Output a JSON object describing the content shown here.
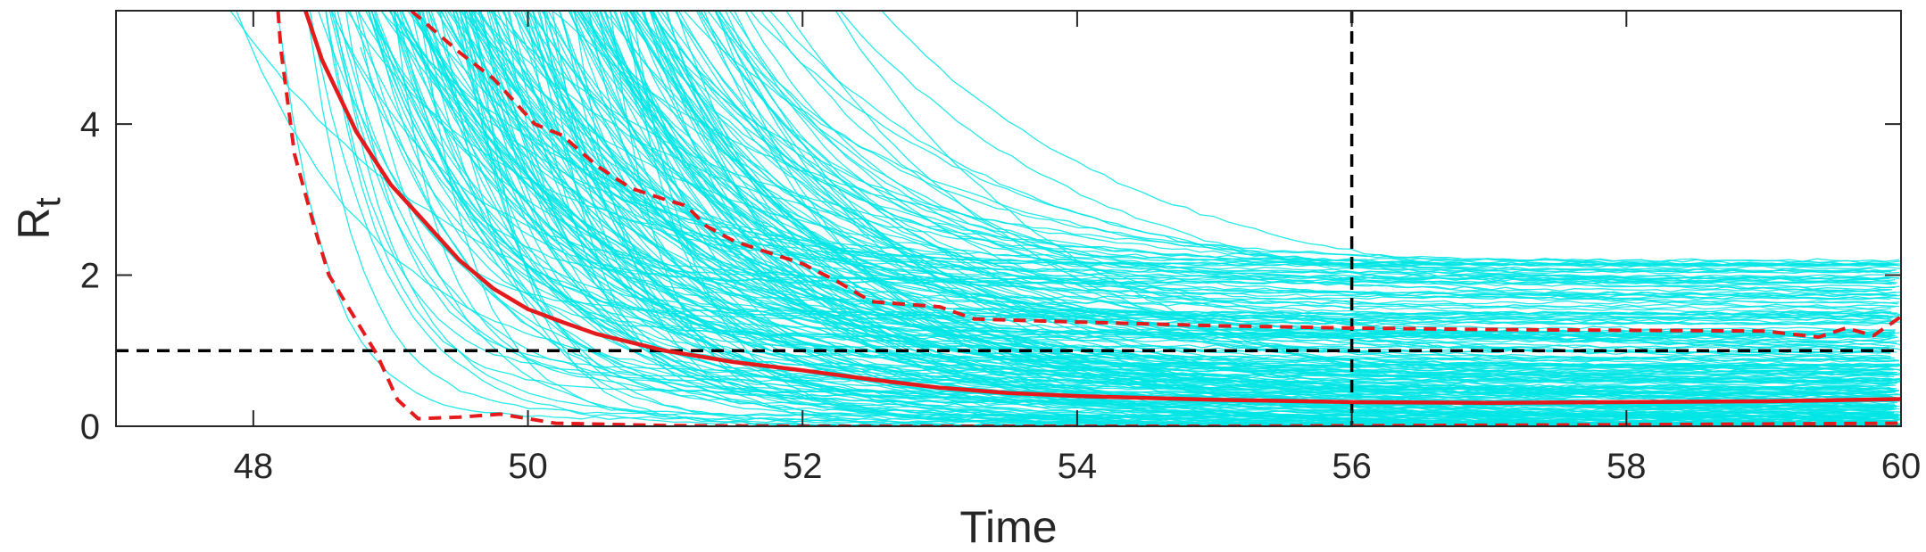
{
  "chart_data": {
    "type": "line",
    "xlabel": "Time",
    "ylabel": "R",
    "ylabel_subscript": "t",
    "xlim": [
      47,
      60
    ],
    "ylim": [
      0,
      5.5
    ],
    "x_ticks": [
      "48",
      "50",
      "52",
      "54",
      "56",
      "58",
      "60"
    ],
    "y_ticks": [
      "0",
      "2",
      "4"
    ],
    "grid": false,
    "reference_lines": [
      {
        "orientation": "horizontal",
        "value": 1,
        "color": "#000000",
        "style": "dashed"
      },
      {
        "orientation": "vertical",
        "value": 56,
        "color": "#000000",
        "style": "dashed"
      }
    ],
    "sample_color": "#00e5e5",
    "series": [
      {
        "role": "median",
        "color": "#e41a1c",
        "style": "solid",
        "points": [
          [
            48.38,
            5.5
          ],
          [
            48.5,
            4.85
          ],
          [
            48.75,
            3.9
          ],
          [
            49,
            3.2
          ],
          [
            49.25,
            2.7
          ],
          [
            49.5,
            2.2
          ],
          [
            49.75,
            1.82
          ],
          [
            50,
            1.55
          ],
          [
            50.25,
            1.38
          ],
          [
            50.5,
            1.22
          ],
          [
            51,
            1
          ],
          [
            51.5,
            0.85
          ],
          [
            52,
            0.74
          ],
          [
            52.5,
            0.62
          ],
          [
            53,
            0.51
          ],
          [
            53.5,
            0.44
          ],
          [
            54,
            0.4
          ],
          [
            55,
            0.35
          ],
          [
            56,
            0.32
          ],
          [
            57,
            0.31
          ],
          [
            58,
            0.32
          ],
          [
            59,
            0.33
          ],
          [
            60,
            0.36
          ]
        ]
      },
      {
        "role": "upper-bound",
        "color": "#e41a1c",
        "style": "dashed",
        "points": [
          [
            49.15,
            5.5
          ],
          [
            49.5,
            4.95
          ],
          [
            49.75,
            4.6
          ],
          [
            50.05,
            4
          ],
          [
            50.25,
            3.85
          ],
          [
            50.5,
            3.45
          ],
          [
            50.75,
            3.15
          ],
          [
            51,
            3
          ],
          [
            51.15,
            2.92
          ],
          [
            51.3,
            2.65
          ],
          [
            51.5,
            2.45
          ],
          [
            52,
            2.15
          ],
          [
            52.25,
            1.92
          ],
          [
            52.5,
            1.65
          ],
          [
            53,
            1.58
          ],
          [
            53.25,
            1.42
          ],
          [
            54,
            1.38
          ],
          [
            55,
            1.33
          ],
          [
            56,
            1.3
          ],
          [
            57,
            1.28
          ],
          [
            58,
            1.27
          ],
          [
            59,
            1.26
          ],
          [
            59.4,
            1.18
          ],
          [
            59.6,
            1.3
          ],
          [
            59.8,
            1.2
          ],
          [
            60,
            1.45
          ]
        ]
      },
      {
        "role": "lower-bound",
        "color": "#e41a1c",
        "style": "dashed",
        "points": [
          [
            48.18,
            5.5
          ],
          [
            48.2,
            5
          ],
          [
            48.3,
            3.6
          ],
          [
            48.45,
            2.6
          ],
          [
            48.55,
            2
          ],
          [
            48.75,
            1.4
          ],
          [
            48.9,
            0.95
          ],
          [
            49.05,
            0.35
          ],
          [
            49.2,
            0.1
          ],
          [
            49.5,
            0.12
          ],
          [
            49.8,
            0.16
          ],
          [
            50.2,
            0.04
          ],
          [
            51,
            0.01
          ],
          [
            52,
            0
          ],
          [
            55,
            0
          ],
          [
            58,
            0.02
          ],
          [
            59,
            0.03
          ],
          [
            60,
            0.04
          ]
        ]
      }
    ]
  }
}
